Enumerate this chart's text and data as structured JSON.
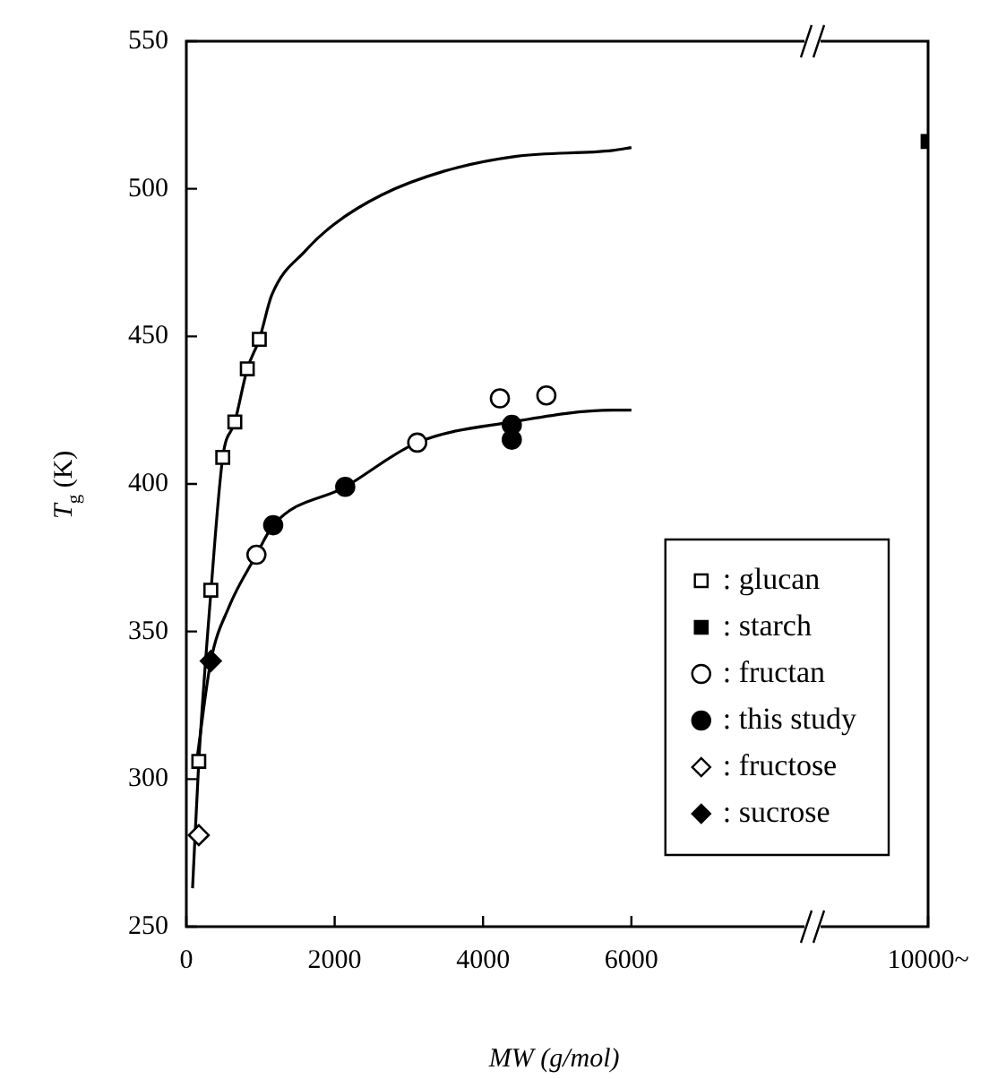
{
  "chart_data": {
    "type": "scatter",
    "xlabel": "MW (g/mol)",
    "ylabel": "T$_{g}$ (K)",
    "xlim": [
      0,
      10000
    ],
    "xticks": [
      0,
      2000,
      4000,
      6000,
      {
        "value": 10000,
        "label": "10000~"
      }
    ],
    "ylim": [
      250,
      550
    ],
    "yticks": [
      250,
      300,
      350,
      400,
      450,
      500,
      550
    ],
    "grid": false,
    "legend": "bottom right",
    "series": [
      {
        "type": "line",
        "color": "#000000",
        "marker": "none",
        "x": [
          84,
          168,
          330,
          491,
          654,
          822,
          984,
          1152,
          1605,
          1993,
          2641,
          3481,
          4453,
          5748,
          6000
        ],
        "values": [
          263,
          306,
          363,
          409,
          421,
          439,
          449,
          464,
          479,
          488,
          498,
          506,
          511,
          513,
          514
        ]
      },
      {
        "type": "line",
        "color": "#000000",
        "marker": "none",
        "x": [
          150,
          330,
          569,
          945,
          1171,
          2142,
          3113,
          4388,
          5748,
          6000
        ],
        "values": [
          308,
          340,
          358,
          376,
          386,
          399,
          414,
          421,
          425,
          425
        ]
      },
      {
        "name": ": glucan",
        "color": "#ffffff",
        "marker": "square",
        "x": [
          168,
          330,
          491,
          654,
          822,
          984
        ],
        "values": [
          306,
          364,
          409,
          421,
          439,
          449
        ]
      },
      {
        "name": ": starch",
        "color": "#000000",
        "marker": "square",
        "x": [
          10000
        ],
        "values": [
          516
        ]
      },
      {
        "name": ": fructan",
        "color": "#ffffff",
        "marker": "circle",
        "x": [
          945,
          3113,
          4227,
          4854
        ],
        "values": [
          376,
          414,
          429,
          430
        ]
      },
      {
        "name": ": this study",
        "color": "#000000",
        "marker": "circle",
        "x": [
          1171,
          2142,
          4388,
          4388
        ],
        "values": [
          386,
          399,
          420,
          415
        ]
      },
      {
        "name": ": fructose",
        "color": "#ffffff",
        "marker": "diamond",
        "x": [
          168
        ],
        "values": [
          281
        ]
      },
      {
        "name": ": sucrose",
        "color": "#000000",
        "marker": "diamond",
        "x": [
          330
        ],
        "values": [
          340
        ]
      }
    ]
  }
}
